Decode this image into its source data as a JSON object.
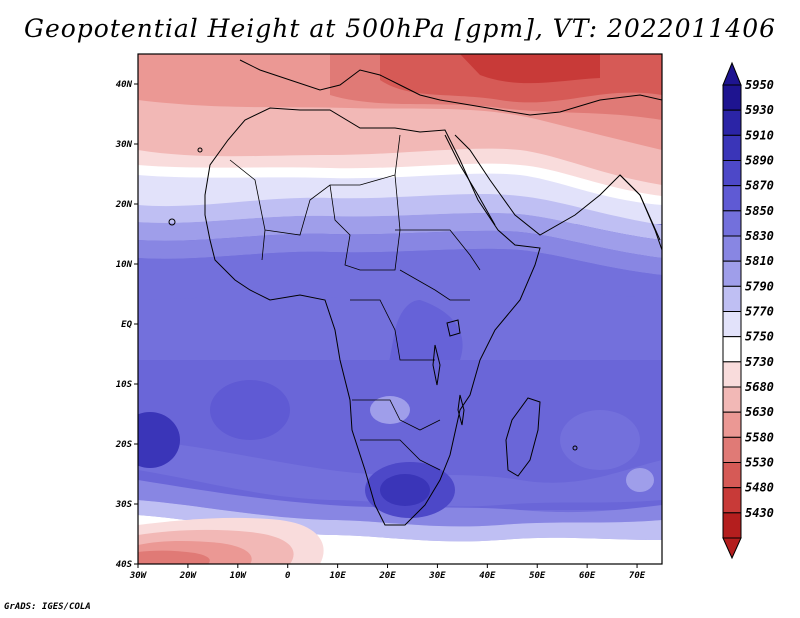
{
  "title": "Geopotential Height at 500hPa [gpm], VT: 2022011406",
  "credit": "GrADS: IGES/COLA",
  "map": {
    "lon_range": [
      -30,
      75
    ],
    "lat_range": [
      -40,
      45
    ],
    "lon_labels": [
      "30W",
      "20W",
      "10W",
      "0",
      "10E",
      "20E",
      "30E",
      "40E",
      "50E",
      "60E",
      "70E"
    ],
    "lat_labels": [
      "40N",
      "30N",
      "20N",
      "10N",
      "EQ",
      "10S",
      "20S",
      "30S",
      "40S"
    ],
    "variable": "Geopotential height, 500 hPa",
    "units": "gpm",
    "valid_time": "2022011406"
  },
  "colorbar": {
    "levels": [
      "5950",
      "5930",
      "5910",
      "5890",
      "5870",
      "5850",
      "5830",
      "5810",
      "5790",
      "5770",
      "5750",
      "5730",
      "5680",
      "5630",
      "5580",
      "5530",
      "5480",
      "5430"
    ],
    "colors": [
      "#1e1490",
      "#2b24a6",
      "#3a35b8",
      "#4d48c8",
      "#5f5ad4",
      "#7370dc",
      "#8886e3",
      "#9f9eea",
      "#bfbff3",
      "#e2e2fa",
      "#ffffff",
      "#f9dcdc",
      "#f2b8b6",
      "#eb9894",
      "#e07a76",
      "#d65a56",
      "#c83a38",
      "#b41e1e"
    ]
  }
}
